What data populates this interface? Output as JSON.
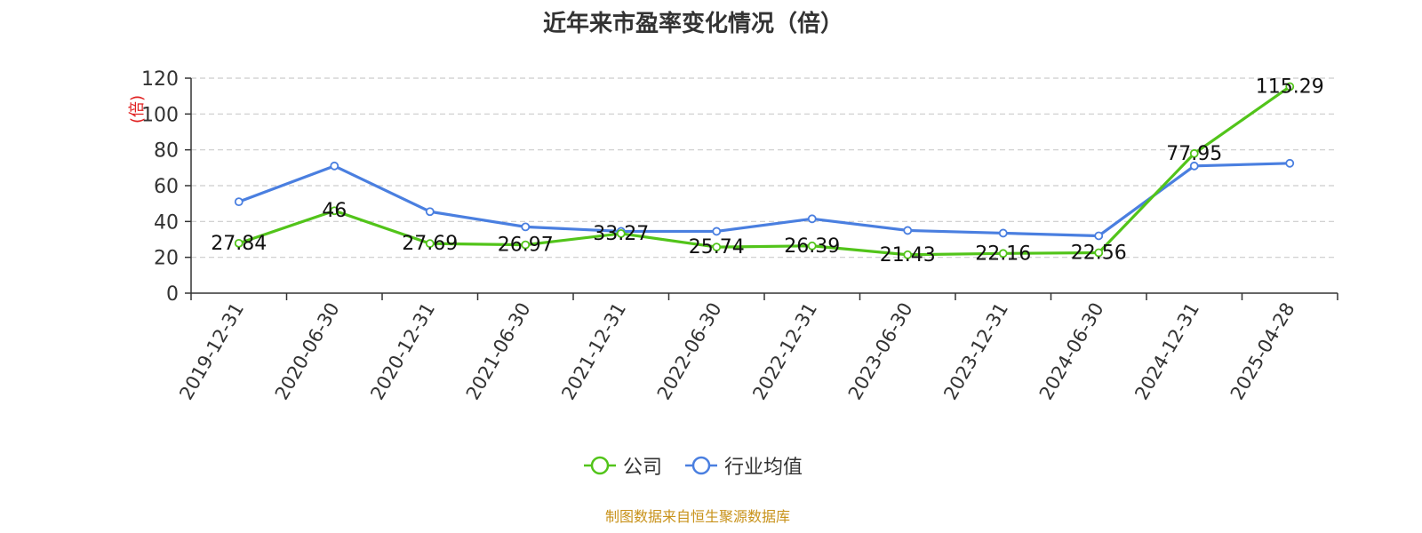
{
  "chart_data": {
    "type": "line",
    "title": "近年来市盈率变化情况（倍）",
    "ylabel": "(倍)",
    "xlabel": "",
    "categories": [
      "2019-12-31",
      "2020-06-30",
      "2020-12-31",
      "2021-06-30",
      "2021-12-31",
      "2022-06-30",
      "2022-12-31",
      "2023-06-30",
      "2023-12-31",
      "2024-06-30",
      "2024-12-31",
      "2025-04-28"
    ],
    "ylim": [
      0,
      120
    ],
    "yticks": [
      0,
      20,
      40,
      60,
      80,
      100,
      120
    ],
    "grid": true,
    "legend_position": "bottom",
    "series": [
      {
        "name": "公司",
        "color": "#52c41a",
        "labels": true,
        "values": [
          27.84,
          46,
          27.69,
          26.97,
          33.27,
          25.74,
          26.39,
          21.43,
          22.16,
          22.56,
          77.95,
          115.29
        ]
      },
      {
        "name": "行业均值",
        "color": "#4a7fe0",
        "labels": false,
        "values": [
          51,
          71,
          45.5,
          37,
          34.5,
          34.5,
          41.5,
          35,
          33.5,
          32,
          71,
          72.5
        ]
      }
    ]
  },
  "source_note": "制图数据来自恒生聚源数据库"
}
